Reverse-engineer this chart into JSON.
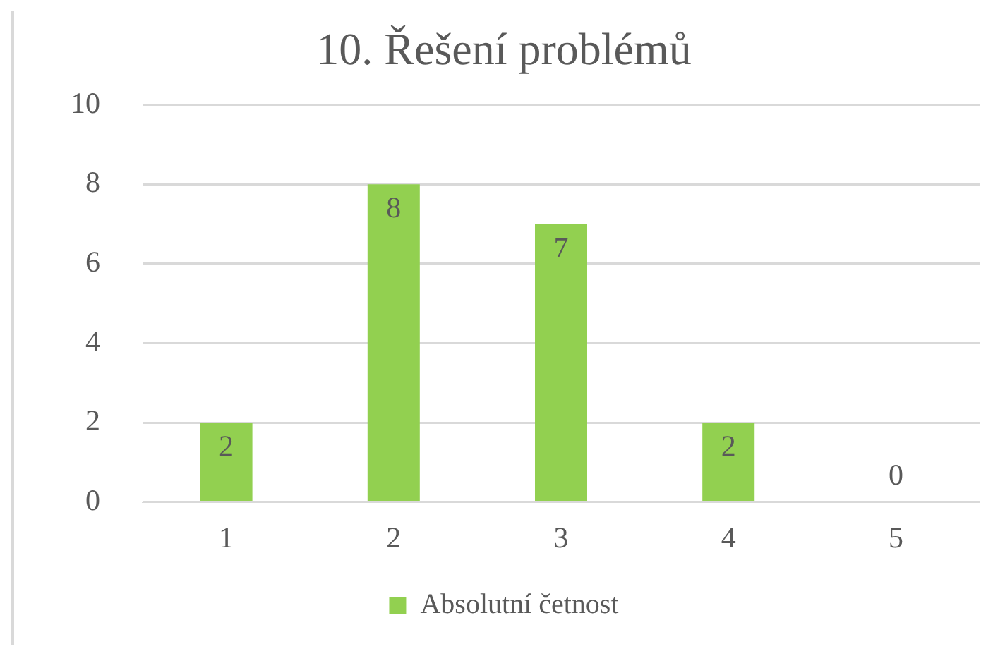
{
  "chart_data": {
    "type": "bar",
    "title": "10. Řešení problémů",
    "categories": [
      "1",
      "2",
      "3",
      "4",
      "5"
    ],
    "series": [
      {
        "name": "Absolutní četnost",
        "color": "#92d050",
        "values": [
          2,
          8,
          7,
          2,
          0
        ]
      }
    ],
    "ylim": [
      0,
      10
    ],
    "yticks": [
      0,
      2,
      4,
      6,
      8,
      10
    ],
    "grid": "y",
    "legend": "bottom",
    "data_labels": true
  }
}
